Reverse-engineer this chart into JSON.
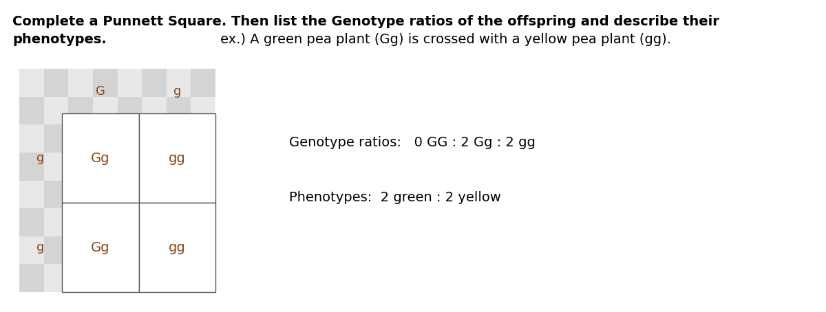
{
  "title_bold": "Complete a Punnett Square. Then list the Genotype ratios of the offspring and describe their",
  "title_bold2": "phenotypes.",
  "example_text": "ex.) A green pea plant (Gg) is crossed with a yellow pea plant (gg).",
  "genotype_text": "Genotype ratios:   0 GG : 2 Gg : 2 gg",
  "phenotype_text": "Phenotypes:  2 green : 2 yellow",
  "col_alleles": [
    "G",
    "g"
  ],
  "row_alleles": [
    "g",
    "g"
  ],
  "cells": [
    [
      "Gg",
      "gg"
    ],
    [
      "Gg",
      "gg"
    ]
  ],
  "cell_color": "#8B4513",
  "header_color": "#8B4513",
  "background_color": "#ffffff",
  "checker_color1": "#e8e8e8",
  "checker_color2": "#d4d4d4",
  "grid_color": "#555555",
  "title_fontsize": 14,
  "cell_fontsize": 14,
  "header_fontsize": 13,
  "info_fontsize": 14,
  "fig_width": 12.0,
  "fig_height": 4.54
}
